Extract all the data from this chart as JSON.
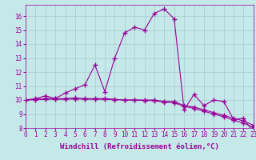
{
  "x_labels": [
    0,
    1,
    2,
    3,
    4,
    5,
    6,
    7,
    8,
    9,
    10,
    11,
    12,
    13,
    14,
    15,
    16,
    17,
    18,
    19,
    20,
    21,
    22,
    23
  ],
  "line1_y": [
    10.0,
    10.1,
    10.3,
    10.1,
    10.5,
    10.8,
    11.1,
    12.5,
    10.6,
    13.0,
    14.8,
    15.2,
    15.0,
    16.2,
    16.5,
    15.8,
    9.3,
    10.4,
    9.6,
    10.0,
    9.9,
    8.6,
    8.7,
    7.7
  ],
  "line2_y": [
    10.0,
    10.05,
    10.1,
    10.1,
    10.1,
    10.15,
    10.1,
    10.1,
    10.1,
    10.05,
    10.0,
    10.0,
    10.0,
    10.0,
    9.9,
    9.9,
    9.6,
    9.5,
    9.3,
    9.1,
    8.9,
    8.7,
    8.5,
    8.2
  ],
  "line3_y": [
    10.0,
    10.02,
    10.05,
    10.05,
    10.05,
    10.08,
    10.05,
    10.05,
    10.05,
    10.02,
    10.0,
    10.0,
    9.97,
    9.95,
    9.85,
    9.8,
    9.55,
    9.4,
    9.2,
    9.0,
    8.8,
    8.55,
    8.35,
    8.05
  ],
  "xlim": [
    0,
    23
  ],
  "ylim": [
    8,
    16.8
  ],
  "yticks": [
    8,
    9,
    10,
    11,
    12,
    13,
    14,
    15,
    16
  ],
  "background_color": "#c5e8e8",
  "grid_color": "#a8cece",
  "line_color": "#990099",
  "marker": "+",
  "markersize": 4,
  "xlabel": "Windchill (Refroidissement éolien,°C)",
  "xlabel_fontsize": 6.5,
  "tick_fontsize": 5.5,
  "linewidth": 0.8
}
